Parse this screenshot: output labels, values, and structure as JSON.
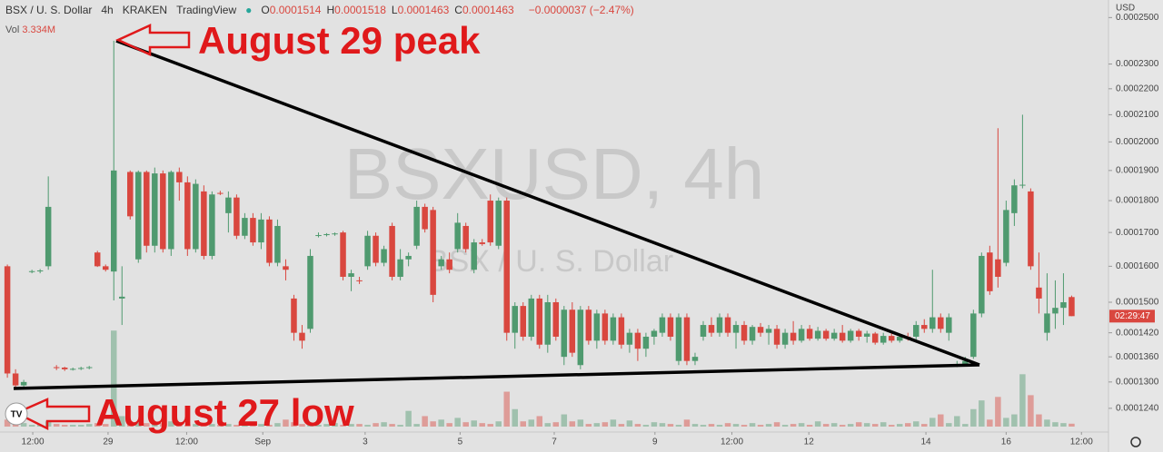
{
  "chart_data": {
    "type": "candlestick",
    "symbol": "BSX / U. S. Dollar",
    "interval": "4h",
    "exchange": "KRAKEN",
    "source": "TradingView",
    "ohlc_header": [
      {
        "label": "O",
        "value": "0.0001514"
      },
      {
        "label": "H",
        "value": "0.0001518"
      },
      {
        "label": "L",
        "value": "0.0001463"
      },
      {
        "label": "C",
        "value": "0.0001463"
      }
    ],
    "change": "−0.0000037 (−2.47%)",
    "volume_title": "Vol",
    "volume_value": "3.334M",
    "currency": "USD",
    "countdown": "02:29:47",
    "watermark": "BSXUSD, 4h",
    "watermark_subtitle": "BSX / U. S. Dollar",
    "annotations": [
      "August 29 peak",
      "August 27 low"
    ],
    "up_color": "#4f9a6f",
    "down_color": "#d9473f",
    "log_scale": true,
    "grid": false,
    "ylim": [
      0.00012,
      0.000258
    ],
    "yticks": [
      {
        "value": 0.00025,
        "label": "0.0002500"
      },
      {
        "value": 0.00023,
        "label": "0.0002300"
      },
      {
        "value": 0.00022,
        "label": "0.0002200"
      },
      {
        "value": 0.00021,
        "label": "0.0002100"
      },
      {
        "value": 0.0002,
        "label": "0.0002000"
      },
      {
        "value": 0.00019,
        "label": "0.0001900"
      },
      {
        "value": 0.00018,
        "label": "0.0001800"
      },
      {
        "value": 0.00017,
        "label": "0.0001700"
      },
      {
        "value": 0.00016,
        "label": "0.0001600"
      },
      {
        "value": 0.00015,
        "label": "0.0001500"
      },
      {
        "value": 0.000142,
        "label": "0.0001420"
      },
      {
        "value": 0.000136,
        "label": "0.0001360"
      },
      {
        "value": 0.00013,
        "label": "0.0001300"
      },
      {
        "value": 0.000124,
        "label": "0.0001240"
      }
    ],
    "xlim": [
      -0.9,
      134.5
    ],
    "xticks": [
      {
        "value": 3.1,
        "label": "12:00"
      },
      {
        "value": 12.3,
        "label": "29"
      },
      {
        "value": 21.9,
        "label": "12:00"
      },
      {
        "value": 31.2,
        "label": "Sep"
      },
      {
        "value": 43.7,
        "label": "3"
      },
      {
        "value": 55.3,
        "label": "5"
      },
      {
        "value": 66.8,
        "label": "7"
      },
      {
        "value": 79.1,
        "label": "9"
      },
      {
        "value": 88.5,
        "label": "12:00"
      },
      {
        "value": 97.9,
        "label": "12"
      },
      {
        "value": 112.2,
        "label": "14"
      },
      {
        "value": 122.0,
        "label": "16"
      },
      {
        "value": 131.2,
        "label": "12:00"
      }
    ],
    "vlim": [
      0,
      130
    ],
    "candles": [
      [
        0.00016,
        0.0001605,
        0.000131,
        0.000132
      ],
      [
        0.000132,
        0.000133,
        0.0001285,
        0.0001292
      ],
      [
        0.0001292,
        0.0001305,
        0.0001288,
        0.00013
      ],
      [
        0.0001585,
        0.000159,
        0.000158,
        0.0001586
      ],
      [
        0.0001586,
        0.0001592,
        0.000158,
        0.0001588
      ],
      [
        0.00016,
        0.000188,
        0.000159,
        0.000178
      ],
      [
        0.0001335,
        0.000134,
        0.0001328,
        0.0001334
      ],
      [
        0.0001334,
        0.0001336,
        0.0001326,
        0.000133
      ],
      [
        0.000133,
        0.0001334,
        0.0001327,
        0.0001331
      ],
      [
        0.0001331,
        0.0001336,
        0.0001328,
        0.0001333
      ],
      [
        0.0001333,
        0.0001338,
        0.000133,
        0.0001335
      ],
      [
        0.000164,
        0.0001645,
        0.0001598,
        0.00016
      ],
      [
        0.00016,
        0.0001605,
        0.0001585,
        0.000159
      ],
      [
        0.0001585,
        0.0002398,
        0.0001505,
        0.00019
      ],
      [
        0.000151,
        0.00016,
        0.000144,
        0.0001515
      ],
      [
        0.0001895,
        0.00019,
        0.000174,
        0.000175
      ],
      [
        0.000162,
        0.00019,
        0.000161,
        0.0001895
      ],
      [
        0.0001895,
        0.00019,
        0.000164,
        0.000166
      ],
      [
        0.000166,
        0.000191,
        0.000164,
        0.000189
      ],
      [
        0.000189,
        0.00019,
        0.000164,
        0.000165
      ],
      [
        0.000165,
        0.00019,
        0.000163,
        0.0001895
      ],
      [
        0.0001895,
        0.000191,
        0.00018,
        0.000186
      ],
      [
        0.000186,
        0.000188,
        0.000163,
        0.000165
      ],
      [
        0.000165,
        0.000187,
        0.000164,
        0.0001855
      ],
      [
        0.000183,
        0.000185,
        0.000162,
        0.000163
      ],
      [
        0.000163,
        0.000183,
        0.000162,
        0.000182
      ],
      [
        0.0001825,
        0.0001832,
        0.0001818,
        0.0001824
      ],
      [
        0.000176,
        0.000183,
        0.00017,
        0.000181
      ],
      [
        0.000181,
        0.000182,
        0.000168,
        0.000169
      ],
      [
        0.000169,
        0.000176,
        0.000168,
        0.0001745
      ],
      [
        0.0001745,
        0.000176,
        0.000166,
        0.000167
      ],
      [
        0.000167,
        0.000176,
        0.000165,
        0.000174
      ],
      [
        0.000174,
        0.000175,
        0.00016,
        0.000161
      ],
      [
        0.000161,
        0.000174,
        0.00016,
        0.000172
      ],
      [
        0.00016,
        0.000162,
        0.000156,
        0.000159
      ],
      [
        0.000151,
        0.000152,
        0.00014,
        0.000142
      ],
      [
        0.000142,
        0.000144,
        0.000138,
        0.00014
      ],
      [
        0.000143,
        0.000165,
        0.000142,
        0.000163
      ],
      [
        0.000169,
        0.00017,
        0.0001685,
        0.0001692
      ],
      [
        0.0001692,
        0.0001698,
        0.0001688,
        0.0001695
      ],
      [
        0.0001695,
        0.00017,
        0.000169,
        0.0001697
      ],
      [
        0.00017,
        0.0001705,
        0.000156,
        0.000157
      ],
      [
        0.000157,
        0.000159,
        0.000153,
        0.000158
      ],
      [
        0.000156,
        0.000157,
        0.000155,
        0.0001558
      ],
      [
        0.00016,
        0.0001705,
        0.000159,
        0.000169
      ],
      [
        0.000169,
        0.00017,
        0.00016,
        0.000161
      ],
      [
        0.000161,
        0.000166,
        0.00016,
        0.000165
      ],
      [
        0.000172,
        0.000173,
        0.000156,
        0.000157
      ],
      [
        0.000157,
        0.000165,
        0.000156,
        0.000162
      ],
      [
        0.000162,
        0.000164,
        0.00016,
        0.000163
      ],
      [
        0.000166,
        0.00018,
        0.000165,
        0.000178
      ],
      [
        0.000178,
        0.000179,
        0.00017,
        0.000171
      ],
      [
        0.000177,
        0.000178,
        0.00015,
        0.000152
      ],
      [
        0.00016,
        0.000163,
        0.000159,
        0.000162
      ],
      [
        0.000162,
        0.000164,
        0.000158,
        0.000159
      ],
      [
        0.000165,
        0.000176,
        0.000164,
        0.000173
      ],
      [
        0.000172,
        0.000173,
        0.000164,
        0.000165
      ],
      [
        0.000159,
        0.000168,
        0.000158,
        0.000167
      ],
      [
        0.000167,
        0.000168,
        0.000166,
        0.0001665
      ],
      [
        0.00018,
        0.000182,
        0.000166,
        0.000167
      ],
      [
        0.000166,
        0.000181,
        0.000165,
        0.00018
      ],
      [
        0.00018,
        0.000181,
        0.00014,
        0.000142
      ],
      [
        0.000142,
        0.00015,
        0.000138,
        0.000149
      ],
      [
        0.000149,
        0.00015,
        0.00014,
        0.000141
      ],
      [
        0.000141,
        0.000152,
        0.00014,
        0.000151
      ],
      [
        0.000151,
        0.000152,
        0.000138,
        0.000139
      ],
      [
        0.000139,
        0.000152,
        0.000137,
        0.00015
      ],
      [
        0.00015,
        0.000151,
        0.00014,
        0.000141
      ],
      [
        0.000136,
        0.000149,
        0.000134,
        0.000148
      ],
      [
        0.000148,
        0.00015,
        0.000136,
        0.000137
      ],
      [
        0.000134,
        0.000149,
        0.000133,
        0.000148
      ],
      [
        0.000148,
        0.000149,
        0.000139,
        0.00014
      ],
      [
        0.00014,
        0.000148,
        0.000138,
        0.000147
      ],
      [
        0.000147,
        0.000148,
        0.000139,
        0.00014
      ],
      [
        0.00014,
        0.000147,
        0.000139,
        0.000146
      ],
      [
        0.000146,
        0.000147,
        0.000138,
        0.000139
      ],
      [
        0.000139,
        0.000143,
        0.000137,
        0.000142
      ],
      [
        0.000142,
        0.000143,
        0.000135,
        0.000138
      ],
      [
        0.000138,
        0.000142,
        0.000136,
        0.000141
      ],
      [
        0.000141,
        0.000143,
        0.000139,
        0.0001425
      ],
      [
        0.000142,
        0.000147,
        0.000141,
        0.000146
      ],
      [
        0.000146,
        0.000147,
        0.00014,
        0.000141
      ],
      [
        0.000135,
        0.000147,
        0.000134,
        0.000146
      ],
      [
        0.000146,
        0.000147,
        0.000134,
        0.000135
      ],
      [
        0.000135,
        0.000137,
        0.000134,
        0.000136
      ],
      [
        0.000141,
        0.000145,
        0.00014,
        0.000144
      ],
      [
        0.000144,
        0.000146,
        0.000141,
        0.000142
      ],
      [
        0.000142,
        0.000147,
        0.000141,
        0.000146
      ],
      [
        0.000146,
        0.000147,
        0.000141,
        0.000142
      ],
      [
        0.000142,
        0.000145,
        0.000138,
        0.000144
      ],
      [
        0.000144,
        0.000145,
        0.000139,
        0.00014
      ],
      [
        0.00014,
        0.000144,
        0.000139,
        0.0001435
      ],
      [
        0.0001435,
        0.0001445,
        0.000141,
        0.000142
      ],
      [
        0.000142,
        0.000144,
        0.000139,
        0.000143
      ],
      [
        0.000143,
        0.000144,
        0.000138,
        0.000139
      ],
      [
        0.000139,
        0.000143,
        0.000138,
        0.000142
      ],
      [
        0.000142,
        0.000145,
        0.000139,
        0.00014
      ],
      [
        0.00014,
        0.000144,
        0.0001395,
        0.000143
      ],
      [
        0.000143,
        0.000144,
        0.00014,
        0.0001405
      ],
      [
        0.0001405,
        0.0001435,
        0.00014,
        0.0001425
      ],
      [
        0.0001425,
        0.000143,
        0.00014,
        0.0001405
      ],
      [
        0.0001405,
        0.000143,
        0.00014,
        0.000142
      ],
      [
        0.000142,
        0.000144,
        0.0001395,
        0.00014
      ],
      [
        0.00014,
        0.000143,
        0.0001395,
        0.0001425
      ],
      [
        0.0001425,
        0.000143,
        0.00014,
        0.000141
      ],
      [
        0.000141,
        0.0001425,
        0.0001395,
        0.0001418
      ],
      [
        0.0001418,
        0.0001422,
        0.000139,
        0.0001395
      ],
      [
        0.0001395,
        0.000142,
        0.000139,
        0.0001412
      ],
      [
        0.0001412,
        0.0001418,
        0.0001395,
        0.00014
      ],
      [
        0.00014,
        0.0001415,
        0.0001395,
        0.000141
      ],
      [
        0.000141,
        0.000142,
        0.00014,
        0.0001405
      ],
      [
        0.000141,
        0.000145,
        0.00014,
        0.000144
      ],
      [
        0.000144,
        0.0001455,
        0.000142,
        0.000143
      ],
      [
        0.000143,
        0.000159,
        0.000142,
        0.000146
      ],
      [
        0.000146,
        0.000147,
        0.000142,
        0.000143
      ],
      [
        0.000142,
        0.000147,
        0.00014,
        0.000146
      ],
      [
        0.000134,
        0.000135,
        0.0001335,
        0.0001342
      ],
      [
        0.0001342,
        0.000136,
        0.0001338,
        0.000135
      ],
      [
        0.000136,
        0.000148,
        0.0001355,
        0.000147
      ],
      [
        0.000147,
        0.000164,
        0.000146,
        0.000163
      ],
      [
        0.000164,
        0.000166,
        0.000152,
        0.000153
      ],
      [
        0.000162,
        0.000205,
        0.000154,
        0.000157
      ],
      [
        0.000161,
        0.00018,
        0.00016,
        0.000177
      ],
      [
        0.000176,
        0.000187,
        0.000172,
        0.000185
      ],
      [
        0.000185,
        0.00021,
        0.000184,
        0.0001852
      ],
      [
        0.000183,
        0.000184,
        0.000159,
        0.00016
      ],
      [
        0.000154,
        0.000164,
        0.000147,
        0.000151
      ],
      [
        0.000142,
        0.000158,
        0.00014,
        0.000147
      ],
      [
        0.000147,
        0.000156,
        0.000143,
        0.0001485
      ],
      [
        0.0001485,
        0.000158,
        0.000144,
        0.00015
      ],
      [
        0.0001514,
        0.0001518,
        0.0001463,
        0.0001463
      ]
    ],
    "volume": [
      8,
      3,
      4,
      2,
      2,
      6,
      3,
      2,
      2,
      2,
      3,
      4,
      3,
      110,
      12,
      6,
      5,
      4,
      3,
      4,
      6,
      3,
      2,
      3,
      4,
      3,
      2,
      3,
      2,
      4,
      3,
      3,
      2,
      4,
      8,
      5,
      3,
      2,
      2,
      3,
      4,
      2,
      3,
      3,
      2,
      4,
      5,
      3,
      2,
      18,
      3,
      12,
      6,
      8,
      4,
      10,
      5,
      7,
      4,
      3,
      6,
      40,
      20,
      6,
      8,
      12,
      4,
      5,
      14,
      6,
      8,
      3,
      4,
      5,
      8,
      3,
      7,
      3,
      2,
      5,
      4,
      3,
      2,
      8,
      3,
      2,
      3,
      2,
      4,
      3,
      2,
      4,
      2,
      3,
      5,
      2,
      3,
      4,
      2,
      6,
      3,
      4,
      2,
      3,
      5,
      4,
      3,
      5,
      2,
      3,
      4,
      6,
      3,
      10,
      14,
      4,
      12,
      3,
      20,
      30,
      8,
      34,
      10,
      14,
      60,
      36,
      14,
      8,
      5,
      4,
      3.334
    ]
  }
}
